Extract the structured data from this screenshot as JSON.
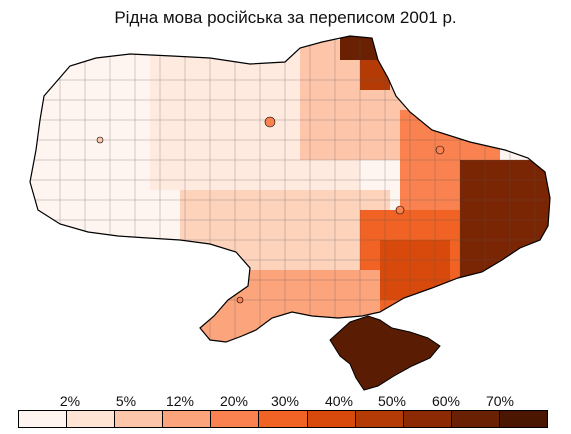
{
  "title": "Рідна мова російська за переписом 2001 р.",
  "legend": {
    "labels": [
      "2%",
      "5%",
      "12%",
      "20%",
      "30%",
      "40%",
      "50%",
      "60%",
      "70%"
    ],
    "colors": [
      "#fff5f0",
      "#ffe3d3",
      "#fdc6ab",
      "#fca47c",
      "#f98250",
      "#f06325",
      "#d84a0c",
      "#b43a06",
      "#8c2a04",
      "#6a2003",
      "#4a1602"
    ]
  },
  "regions": [
    {
      "name": "west",
      "color": "#fff0e8"
    },
    {
      "name": "center-north",
      "color": "#ffe3d3"
    },
    {
      "name": "center-south",
      "color": "#fdc6ab"
    },
    {
      "name": "north-east",
      "color": "#f98250"
    },
    {
      "name": "east",
      "color": "#d84a0c"
    },
    {
      "name": "donbas",
      "color": "#6a2003"
    },
    {
      "name": "south",
      "color": "#f06325"
    },
    {
      "name": "crimea",
      "color": "#5a1c03"
    }
  ]
}
